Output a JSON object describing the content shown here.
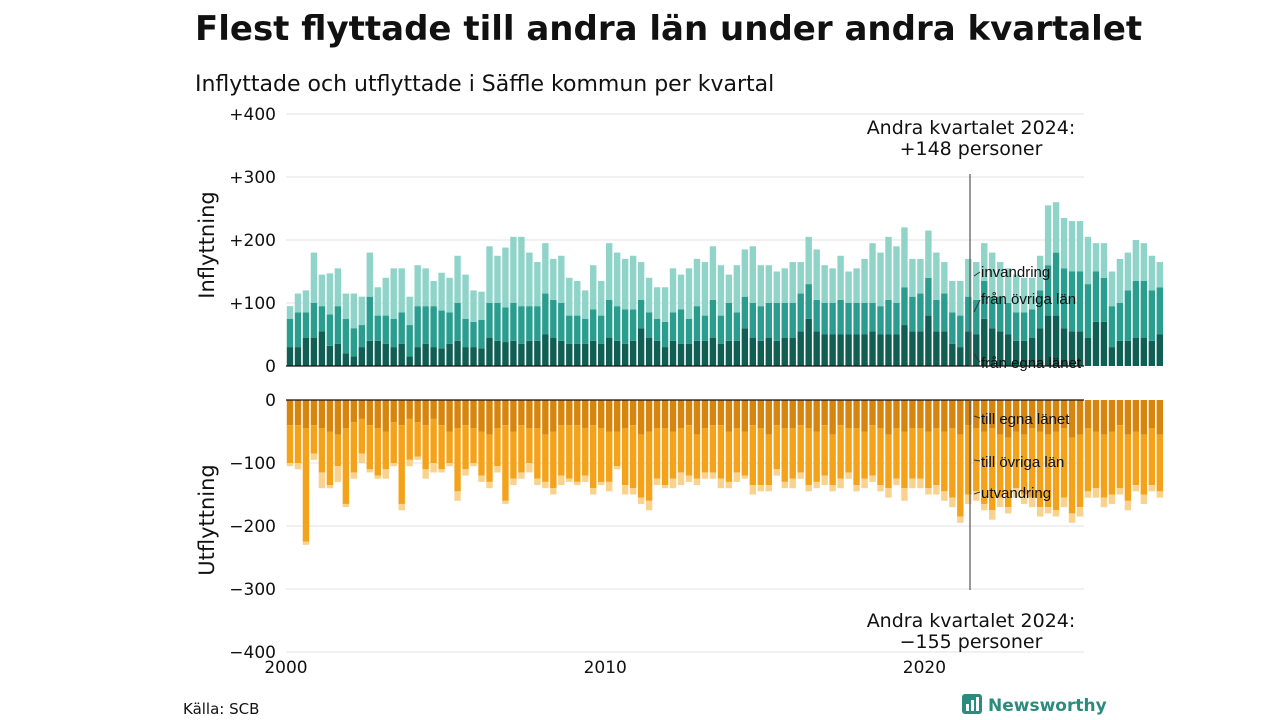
{
  "title": "Flest flyttade till andra län under andra kvartalet",
  "subtitle": "Inflyttade och utflyttade i Säffle kommun per kvartal",
  "source": "Källa: SCB",
  "brand": "Newsworthy",
  "colors": {
    "in_own": "#115e54",
    "in_other": "#2a9d8f",
    "in_immig": "#8fd3c9",
    "out_own": "#d6860f",
    "out_other": "#f3a21a",
    "out_emig": "#f9d38d",
    "brand": "#2b8c7e"
  },
  "chart_data": {
    "type": "bar",
    "stacked": true,
    "x_start": 2000,
    "quarter_step": 0.25,
    "xticks": [
      2000,
      2010,
      2020
    ],
    "xtick_labels": [
      "2000",
      "2010",
      "2020"
    ],
    "xlim": [
      2000,
      2025
    ],
    "panels": [
      {
        "ylabel": "Inflyttning",
        "ylim": [
          0,
          400
        ],
        "yticks": [
          0,
          100,
          200,
          300,
          400
        ],
        "ytick_labels": [
          "0",
          "+100",
          "+200",
          "+300",
          "+400"
        ],
        "annotation": [
          "Andra kvartalet 2024:",
          "+148 personer"
        ],
        "series": [
          {
            "name": "från egna länet",
            "values": [
              30,
              30,
              45,
              45,
              55,
              32,
              35,
              20,
              15,
              30,
              40,
              40,
              35,
              30,
              35,
              15,
              30,
              35,
              30,
              28,
              35,
              40,
              30,
              30,
              28,
              45,
              40,
              38,
              40,
              35,
              40,
              40,
              50,
              45,
              40,
              35,
              35,
              35,
              40,
              35,
              45,
              40,
              35,
              40,
              60,
              45,
              40,
              30,
              40,
              35,
              35,
              40,
              40,
              45,
              35,
              40,
              40,
              60,
              45,
              40,
              45,
              40,
              45,
              45,
              55,
              75,
              55,
              50,
              50,
              50,
              50,
              50,
              50,
              55,
              50,
              50,
              50,
              65,
              55,
              55,
              80,
              55,
              55,
              35,
              30,
              55,
              50,
              75,
              60,
              55,
              50,
              40,
              40,
              45,
              60,
              80,
              80,
              60,
              55,
              55,
              45,
              70,
              70,
              30,
              40,
              40,
              45,
              45,
              40,
              50
            ]
          },
          {
            "name": "från övriga län",
            "values": [
              45,
              55,
              40,
              55,
              40,
              50,
              60,
              55,
              45,
              35,
              70,
              40,
              45,
              45,
              50,
              50,
              65,
              60,
              65,
              60,
              50,
              60,
              45,
              40,
              45,
              55,
              60,
              55,
              60,
              60,
              55,
              55,
              65,
              60,
              60,
              45,
              45,
              40,
              50,
              45,
              60,
              55,
              55,
              50,
              45,
              40,
              35,
              40,
              45,
              55,
              40,
              55,
              40,
              60,
              45,
              60,
              45,
              50,
              55,
              55,
              55,
              60,
              55,
              55,
              60,
              55,
              50,
              50,
              50,
              55,
              50,
              50,
              50,
              45,
              45,
              55,
              50,
              60,
              55,
              60,
              60,
              50,
              60,
              50,
              50,
              55,
              55,
              60,
              50,
              55,
              50,
              45,
              45,
              45,
              60,
              80,
              100,
              95,
              95,
              95,
              85,
              80,
              70,
              65,
              60,
              80,
              90,
              90,
              80,
              75
            ]
          },
          {
            "name": "invandring",
            "values": [
              20,
              30,
              35,
              80,
              50,
              65,
              60,
              40,
              55,
              45,
              70,
              45,
              60,
              80,
              70,
              45,
              65,
              60,
              40,
              60,
              55,
              75,
              70,
              50,
              45,
              90,
              75,
              95,
              105,
              110,
              85,
              70,
              80,
              65,
              75,
              60,
              55,
              45,
              70,
              55,
              90,
              85,
              80,
              85,
              60,
              55,
              50,
              55,
              70,
              55,
              80,
              75,
              85,
              85,
              80,
              45,
              75,
              75,
              90,
              65,
              60,
              50,
              55,
              65,
              50,
              75,
              80,
              60,
              55,
              70,
              50,
              55,
              70,
              95,
              85,
              100,
              90,
              95,
              60,
              55,
              75,
              75,
              50,
              50,
              55,
              60,
              60,
              60,
              70,
              55,
              55,
              60,
              55,
              50,
              55,
              95,
              80,
              80,
              80,
              80,
              75,
              45,
              55,
              55,
              70,
              60,
              65,
              60,
              55,
              40
            ]
          }
        ]
      },
      {
        "ylabel": "Utflyttning",
        "ylim": [
          -400,
          0
        ],
        "yticks": [
          0,
          -100,
          -200,
          -300,
          -400
        ],
        "ytick_labels": [
          "0",
          "−100",
          "−200",
          "−300",
          "−400"
        ],
        "annotation": [
          "Andra kvartalet 2024:",
          "−155 personer"
        ],
        "series": [
          {
            "name": "till egna länet",
            "values": [
              -40,
              -40,
              -45,
              -40,
              -45,
              -50,
              -55,
              -45,
              -35,
              -30,
              -40,
              -45,
              -50,
              -35,
              -40,
              -30,
              -35,
              -40,
              -30,
              -40,
              -50,
              -45,
              -40,
              -45,
              -50,
              -55,
              -45,
              -40,
              -50,
              -40,
              -45,
              -45,
              -55,
              -50,
              -40,
              -40,
              -40,
              -45,
              -40,
              -45,
              -50,
              -50,
              -45,
              -40,
              -55,
              -50,
              -45,
              -45,
              -50,
              -45,
              -40,
              -55,
              -45,
              -40,
              -40,
              -50,
              -45,
              -50,
              -40,
              -45,
              -55,
              -40,
              -45,
              -45,
              -40,
              -45,
              -50,
              -40,
              -55,
              -40,
              -45,
              -45,
              -50,
              -40,
              -45,
              -55,
              -45,
              -50,
              -45,
              -45,
              -50,
              -45,
              -50,
              -45,
              -55,
              -40,
              -45,
              -50,
              -45,
              -55,
              -60,
              -50,
              -55,
              -45,
              -50,
              -55,
              -50,
              -45,
              -60,
              -55,
              -45,
              -50,
              -55,
              -50,
              -40,
              -55,
              -50,
              -55,
              -45,
              -55
            ]
          },
          {
            "name": "till övriga län",
            "values": [
              -60,
              -60,
              -180,
              -45,
              -70,
              -85,
              -50,
              -120,
              -80,
              -55,
              -70,
              -75,
              -60,
              -65,
              -125,
              -65,
              -55,
              -70,
              -70,
              -70,
              -50,
              -100,
              -70,
              -55,
              -70,
              -75,
              -60,
              -120,
              -75,
              -75,
              -55,
              -80,
              -75,
              -90,
              -80,
              -85,
              -90,
              -75,
              -100,
              -85,
              -80,
              -55,
              -90,
              -100,
              -100,
              -110,
              -80,
              -90,
              -75,
              -70,
              -80,
              -70,
              -70,
              -75,
              -85,
              -80,
              -70,
              -70,
              -95,
              -90,
              -80,
              -70,
              -85,
              -80,
              -75,
              -90,
              -80,
              -80,
              -80,
              -85,
              -70,
              -90,
              -75,
              -80,
              -90,
              -85,
              -80,
              -90,
              -80,
              -80,
              -90,
              -90,
              -95,
              -110,
              -130,
              -110,
              -100,
              -115,
              -130,
              -100,
              -110,
              -90,
              -95,
              -110,
              -120,
              -115,
              -125,
              -110,
              -120,
              -115,
              -100,
              -90,
              -100,
              -100,
              -100,
              -105,
              -85,
              -95,
              -90,
              -90
            ]
          },
          {
            "name": "utvandring",
            "values": [
              -5,
              -10,
              -5,
              -10,
              -25,
              -5,
              -25,
              -5,
              -10,
              -15,
              -5,
              -5,
              -15,
              -5,
              -10,
              -10,
              -5,
              -15,
              -15,
              -5,
              -5,
              -15,
              -10,
              -5,
              -10,
              -10,
              -10,
              -5,
              -10,
              -10,
              -15,
              -10,
              -10,
              -10,
              -15,
              -5,
              -5,
              -10,
              -10,
              -5,
              -15,
              -5,
              -15,
              -10,
              -10,
              -15,
              -10,
              -5,
              -15,
              -20,
              -10,
              -10,
              -10,
              -10,
              -15,
              -10,
              -15,
              -5,
              -15,
              -10,
              -10,
              -10,
              -10,
              -15,
              -10,
              -10,
              -10,
              -15,
              -10,
              -15,
              -10,
              -10,
              -15,
              -10,
              -10,
              -15,
              -10,
              -20,
              -15,
              -15,
              -10,
              -15,
              -15,
              -15,
              -10,
              -15,
              -15,
              -10,
              -15,
              -15,
              -10,
              -15,
              -15,
              -15,
              -15,
              -10,
              -10,
              -15,
              -15,
              -15,
              -10,
              -15,
              -15,
              -15,
              -10,
              -15,
              -10,
              -15,
              -10,
              -10
            ]
          }
        ]
      }
    ],
    "legend_labels": [
      "invandring",
      "från övriga län",
      "från egna länet",
      "till egna länet",
      "till övriga län",
      "utvandring"
    ]
  }
}
